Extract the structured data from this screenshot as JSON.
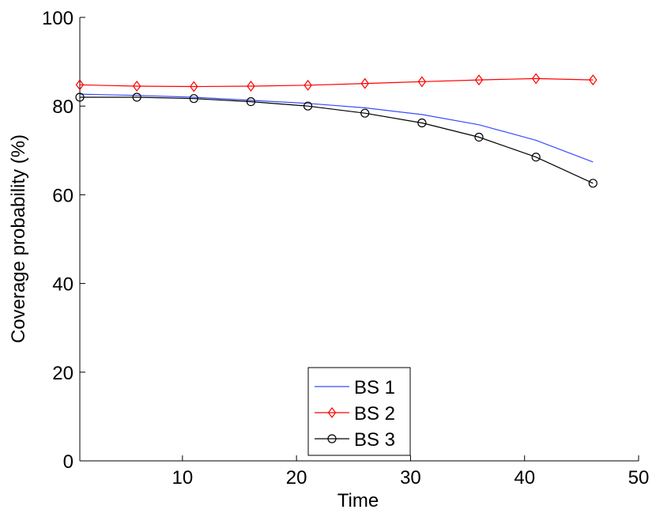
{
  "chart_data": {
    "type": "line",
    "title": "",
    "xlabel": "Time",
    "ylabel": "Coverage probability (%)",
    "xlim": [
      1,
      50
    ],
    "ylim": [
      0,
      100
    ],
    "xticks": [
      10,
      20,
      30,
      40,
      50
    ],
    "yticks": [
      0,
      20,
      40,
      60,
      80,
      100
    ],
    "grid": false,
    "legend_position": "bottom-center",
    "x": [
      1,
      6,
      11,
      16,
      21,
      26,
      31,
      36,
      41,
      46
    ],
    "series": [
      {
        "name": "BS 1",
        "color": "#3a4bff",
        "marker": "none",
        "values": [
          82.7,
          82.4,
          82.0,
          81.3,
          80.6,
          79.6,
          78.1,
          75.8,
          72.3,
          67.4
        ]
      },
      {
        "name": "BS 2",
        "color": "#ff0000",
        "marker": "diamond",
        "values": [
          84.8,
          84.5,
          84.4,
          84.5,
          84.7,
          85.1,
          85.5,
          85.9,
          86.2,
          85.9
        ]
      },
      {
        "name": "BS 3",
        "color": "#000000",
        "marker": "circle",
        "values": [
          82.0,
          82.0,
          81.7,
          81.0,
          80.0,
          78.4,
          76.2,
          73.0,
          68.5,
          62.6
        ]
      }
    ]
  }
}
